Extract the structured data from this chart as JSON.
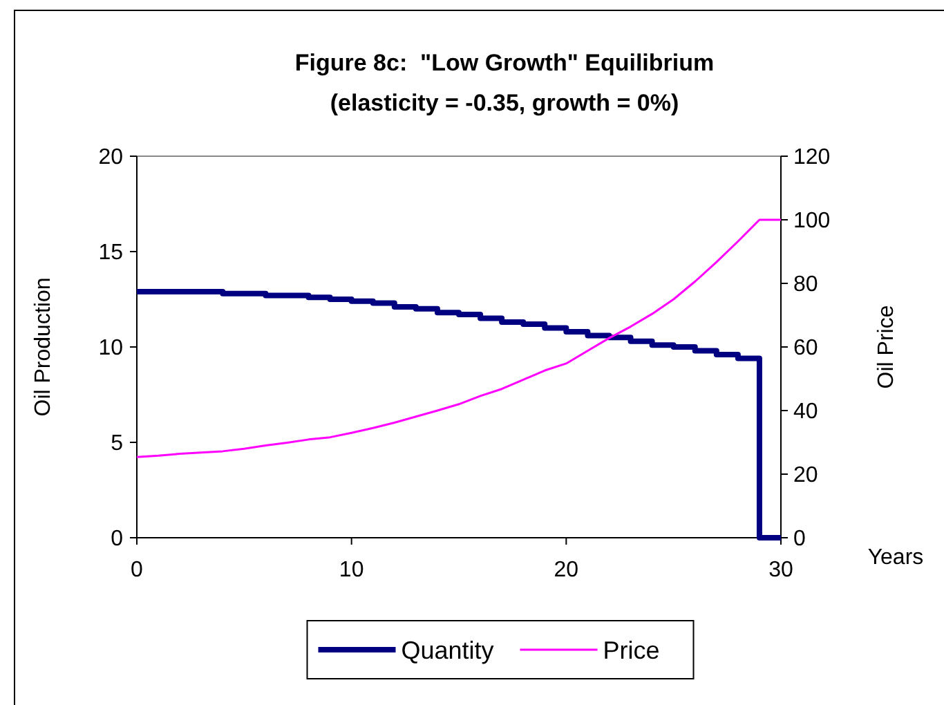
{
  "chart_data": {
    "type": "line",
    "title": "Figure 8c:  \"Low Growth\" Equilibrium",
    "subtitle": "(elasticity = -0.35, growth = 0%)",
    "xlabel": "Years",
    "ylabel": "Oil Production",
    "y2label": "Oil Price",
    "x": [
      0,
      1,
      2,
      3,
      4,
      5,
      6,
      7,
      8,
      9,
      10,
      11,
      12,
      13,
      14,
      15,
      16,
      17,
      18,
      19,
      20,
      21,
      22,
      23,
      24,
      25,
      26,
      27,
      28,
      29,
      30
    ],
    "series": [
      {
        "name": "Quantity",
        "type": "step",
        "color": "#000080",
        "values": [
          12.9,
          12.9,
          12.9,
          12.9,
          12.8,
          12.8,
          12.7,
          12.7,
          12.6,
          12.5,
          12.4,
          12.3,
          12.1,
          12.0,
          11.8,
          11.7,
          11.5,
          11.3,
          11.2,
          11.0,
          10.8,
          10.6,
          10.5,
          10.3,
          10.1,
          10.0,
          9.8,
          9.6,
          9.4,
          0,
          0
        ]
      },
      {
        "name": "Price",
        "type": "line",
        "axis": "y2",
        "color": "#ff00ff",
        "values": [
          25.4,
          25.8,
          26.4,
          26.8,
          27.2,
          28,
          29,
          29.9,
          30.9,
          31.6,
          33,
          34.5,
          36.2,
          38.1,
          40,
          42,
          44.6,
          46.8,
          49.7,
          52.6,
          54.8,
          58.8,
          62.8,
          66.4,
          70.4,
          75,
          80.6,
          86.7,
          93.2,
          100,
          100
        ]
      }
    ],
    "xlim": [
      0,
      30
    ],
    "xticks": [
      0,
      10,
      20,
      30
    ],
    "ylim": [
      0,
      20
    ],
    "yticks": [
      0,
      5,
      10,
      15,
      20
    ],
    "y2lim": [
      0,
      120
    ],
    "y2ticks": [
      0,
      20,
      40,
      60,
      80,
      100,
      120
    ],
    "grid": false,
    "legend": "bottom"
  }
}
